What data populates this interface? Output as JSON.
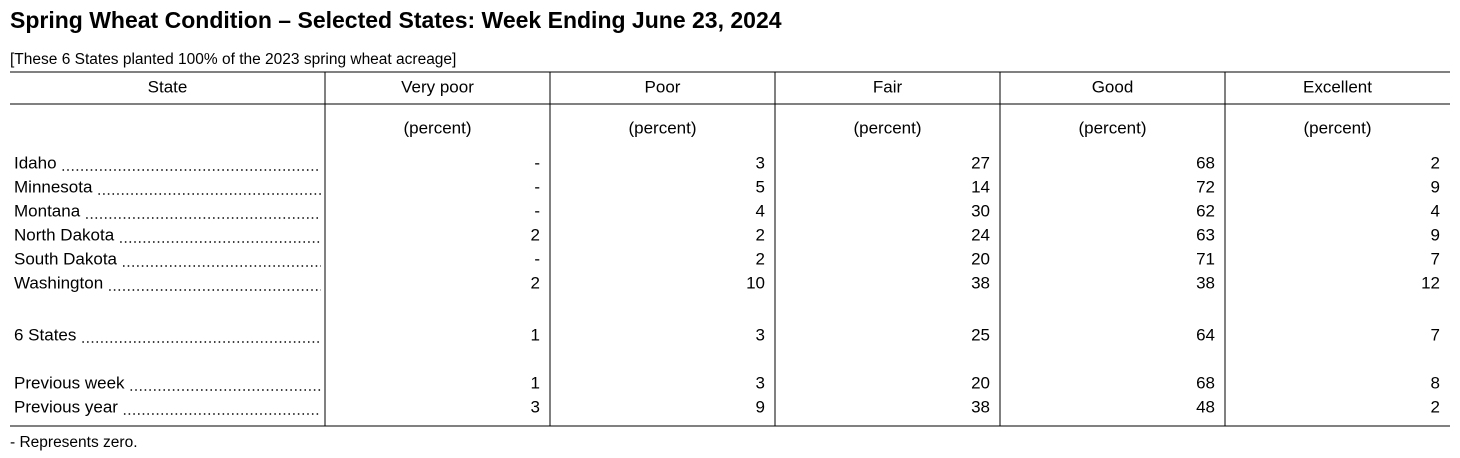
{
  "title": "Spring Wheat Condition – Selected States: Week Ending June 23, 2024",
  "subtitle": "[These 6 States planted 100% of the 2023 spring wheat acreage]",
  "table": {
    "columns": [
      "State",
      "Very poor",
      "Poor",
      "Fair",
      "Good",
      "Excellent"
    ],
    "units": [
      "(percent)",
      "(percent)",
      "(percent)",
      "(percent)",
      "(percent)"
    ],
    "row_groups": [
      [
        [
          "Idaho",
          "-",
          3,
          27,
          68,
          2
        ],
        [
          "Minnesota",
          "-",
          5,
          14,
          72,
          9
        ],
        [
          "Montana",
          "-",
          4,
          30,
          62,
          4
        ],
        [
          "North Dakota",
          2,
          2,
          24,
          63,
          9
        ],
        [
          "South Dakota",
          "-",
          2,
          20,
          71,
          7
        ],
        [
          "Washington",
          2,
          10,
          38,
          38,
          12
        ]
      ],
      [
        [
          "6 States",
          1,
          3,
          25,
          64,
          7
        ]
      ],
      [
        [
          "Previous week",
          1,
          3,
          20,
          68,
          8
        ],
        [
          "Previous year",
          3,
          9,
          38,
          48,
          2
        ]
      ]
    ]
  },
  "footnote": "- Represents zero."
}
